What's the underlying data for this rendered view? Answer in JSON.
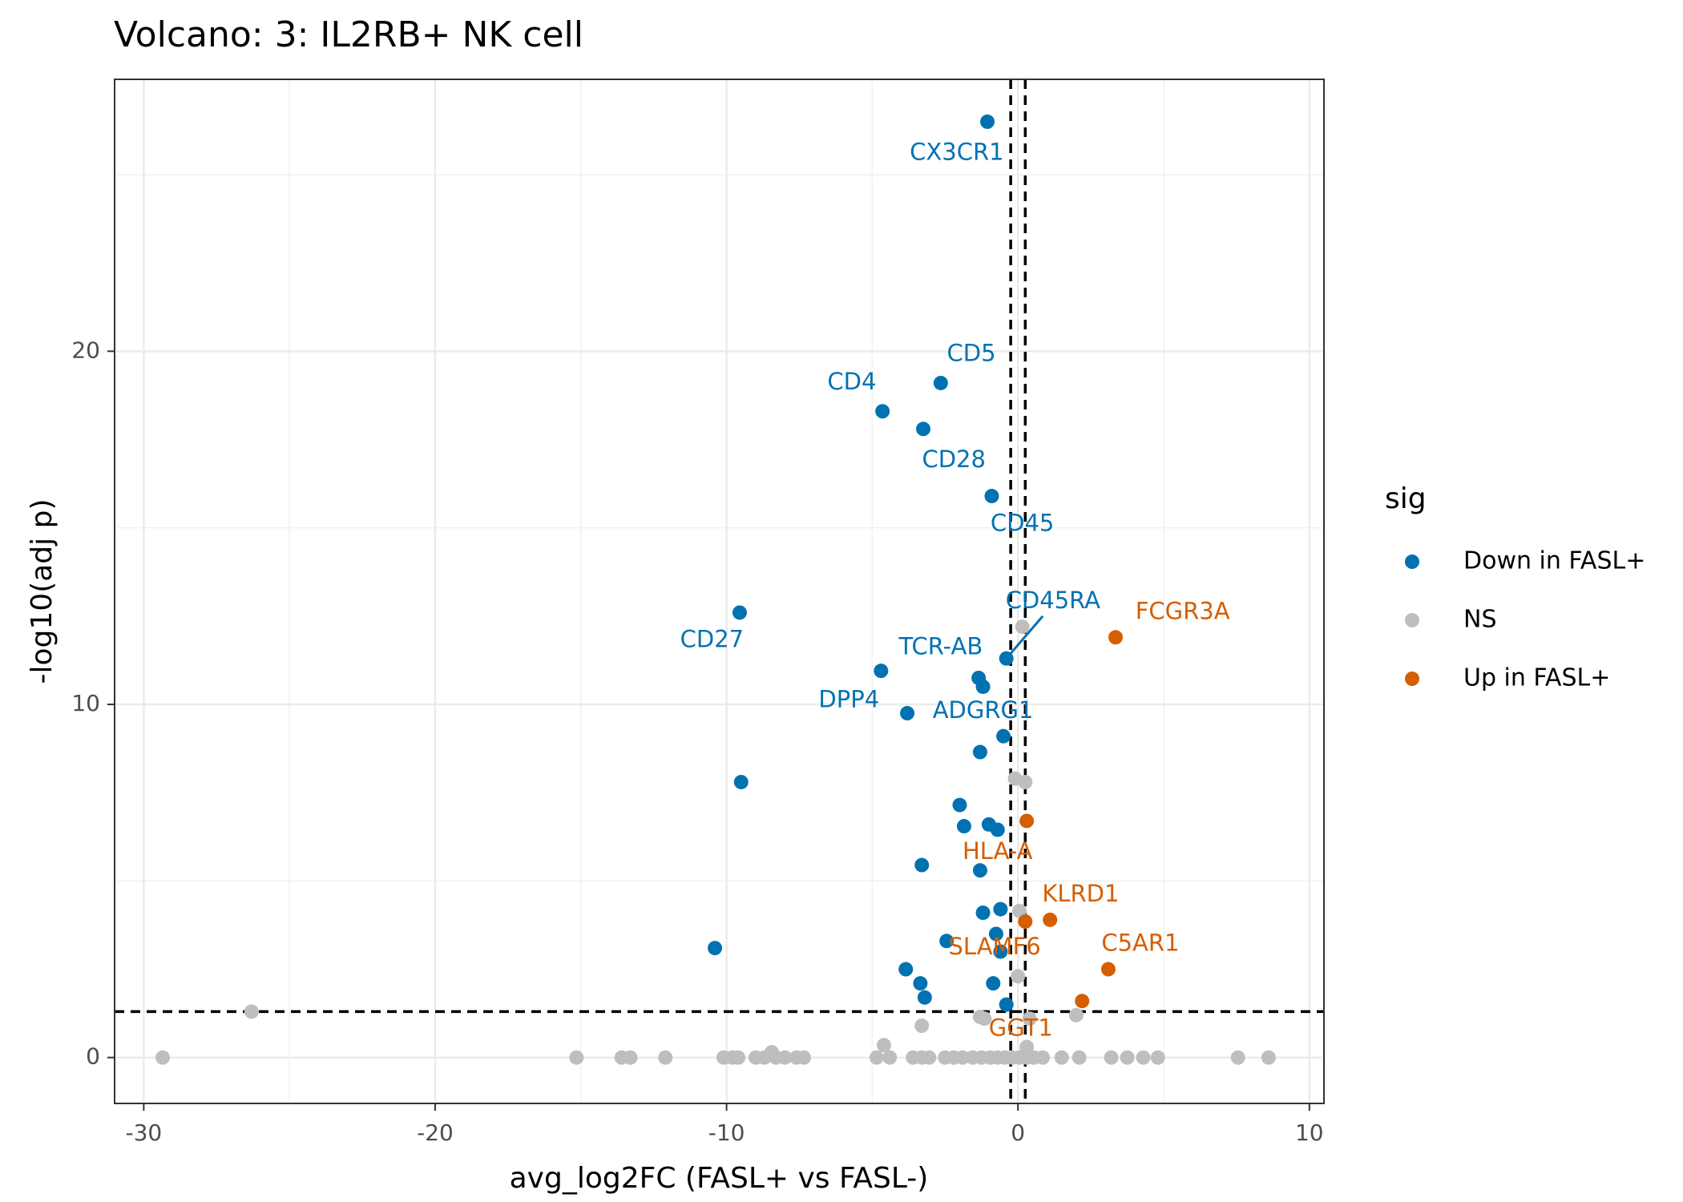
{
  "chart_data": {
    "type": "scatter",
    "title": "Volcano: 3: IL2RB+ NK cell",
    "xlabel": "avg_log2FC (FASL+ vs FASL-)",
    "ylabel": "-log10(adj p)",
    "xlim": [
      -31,
      10.5
    ],
    "ylim": [
      -1.3,
      27.7
    ],
    "x_ticks": [
      -30,
      -20,
      -10,
      0,
      10
    ],
    "x_tick_labels": [
      "-30",
      "-20",
      "-10",
      "0",
      "10"
    ],
    "y_ticks": [
      0,
      10,
      20
    ],
    "y_tick_labels": [
      "0",
      "10",
      "20"
    ],
    "grid": true,
    "thresholds": {
      "vlines": [
        -0.25,
        0.25
      ],
      "hline": 1.3
    },
    "legend": {
      "title": "sig",
      "placement": "right",
      "entries": [
        {
          "label": "Down in FASL+",
          "color": "#0072B2"
        },
        {
          "label": "NS",
          "color": "#BEBEBE"
        },
        {
          "label": "Up in FASL+",
          "color": "#D55E00"
        }
      ]
    },
    "series": [
      {
        "name": "Down in FASL+",
        "color": "#0072B2",
        "points": [
          {
            "x": -1.05,
            "y": 26.5,
            "label": "CX3CR1"
          },
          {
            "x": -2.65,
            "y": 19.1,
            "label": "CD5"
          },
          {
            "x": -4.65,
            "y": 18.3,
            "label": "CD4"
          },
          {
            "x": -3.25,
            "y": 17.8,
            "label": "CD28"
          },
          {
            "x": -0.9,
            "y": 15.9,
            "label": "CD45"
          },
          {
            "x": -9.55,
            "y": 12.6,
            "label": "CD27"
          },
          {
            "x": -0.4,
            "y": 11.3,
            "label": "CD45RA"
          },
          {
            "x": -4.7,
            "y": 10.95,
            "label": "TCR-AB"
          },
          {
            "x": -1.35,
            "y": 10.75
          },
          {
            "x": -1.2,
            "y": 10.5
          },
          {
            "x": -3.8,
            "y": 9.75,
            "label": "DPP4"
          },
          {
            "x": -0.5,
            "y": 9.1,
            "label": "ADGRG1"
          },
          {
            "x": -1.3,
            "y": 8.65
          },
          {
            "x": -9.5,
            "y": 7.8
          },
          {
            "x": -2.0,
            "y": 7.15
          },
          {
            "x": -1.0,
            "y": 6.6
          },
          {
            "x": -1.85,
            "y": 6.55
          },
          {
            "x": -0.7,
            "y": 6.45
          },
          {
            "x": -3.3,
            "y": 5.45
          },
          {
            "x": -1.3,
            "y": 5.3
          },
          {
            "x": -0.6,
            "y": 4.2
          },
          {
            "x": -1.2,
            "y": 4.1
          },
          {
            "x": -0.75,
            "y": 3.5
          },
          {
            "x": -2.45,
            "y": 3.3
          },
          {
            "x": -10.4,
            "y": 3.1
          },
          {
            "x": -0.6,
            "y": 3.0
          },
          {
            "x": -3.85,
            "y": 2.5
          },
          {
            "x": -3.35,
            "y": 2.1
          },
          {
            "x": -0.85,
            "y": 2.1
          },
          {
            "x": -3.2,
            "y": 1.7
          },
          {
            "x": -0.4,
            "y": 1.5
          }
        ]
      },
      {
        "name": "NS",
        "color": "#BEBEBE",
        "points": [
          {
            "x": 0.15,
            "y": 12.2
          },
          {
            "x": -0.1,
            "y": 7.9
          },
          {
            "x": 0.25,
            "y": 7.8
          },
          {
            "x": 0.05,
            "y": 4.15
          },
          {
            "x": 0.0,
            "y": 2.3
          },
          {
            "x": -26.3,
            "y": 1.3
          },
          {
            "x": -1.3,
            "y": 1.15
          },
          {
            "x": -1.15,
            "y": 1.1
          },
          {
            "x": 0.4,
            "y": 1.1
          },
          {
            "x": 2.0,
            "y": 1.2
          },
          {
            "x": -3.3,
            "y": 0.9
          },
          {
            "x": -4.6,
            "y": 0.35
          },
          {
            "x": 0.3,
            "y": 0.3
          },
          {
            "x": -8.45,
            "y": 0.15
          },
          {
            "x": -29.35,
            "y": 0
          },
          {
            "x": -15.15,
            "y": 0
          },
          {
            "x": -13.6,
            "y": 0
          },
          {
            "x": -13.3,
            "y": 0
          },
          {
            "x": -12.1,
            "y": 0
          },
          {
            "x": -10.1,
            "y": 0
          },
          {
            "x": -9.8,
            "y": 0
          },
          {
            "x": -9.6,
            "y": 0
          },
          {
            "x": -9.0,
            "y": 0
          },
          {
            "x": -8.7,
            "y": 0
          },
          {
            "x": -8.3,
            "y": 0
          },
          {
            "x": -8.0,
            "y": 0
          },
          {
            "x": -7.6,
            "y": 0
          },
          {
            "x": -7.35,
            "y": 0
          },
          {
            "x": -4.85,
            "y": 0
          },
          {
            "x": -4.4,
            "y": 0
          },
          {
            "x": -3.6,
            "y": 0
          },
          {
            "x": -3.3,
            "y": 0
          },
          {
            "x": -3.05,
            "y": 0
          },
          {
            "x": -2.5,
            "y": 0
          },
          {
            "x": -2.2,
            "y": 0
          },
          {
            "x": -1.9,
            "y": 0
          },
          {
            "x": -1.55,
            "y": 0
          },
          {
            "x": -1.25,
            "y": 0
          },
          {
            "x": -0.95,
            "y": 0
          },
          {
            "x": -0.7,
            "y": 0
          },
          {
            "x": -0.45,
            "y": 0
          },
          {
            "x": -0.2,
            "y": 0
          },
          {
            "x": 0.05,
            "y": 0
          },
          {
            "x": 0.3,
            "y": 0
          },
          {
            "x": 0.55,
            "y": 0
          },
          {
            "x": 0.85,
            "y": 0
          },
          {
            "x": 1.5,
            "y": 0
          },
          {
            "x": 2.1,
            "y": 0
          },
          {
            "x": 3.2,
            "y": 0
          },
          {
            "x": 3.75,
            "y": 0
          },
          {
            "x": 4.3,
            "y": 0
          },
          {
            "x": 4.8,
            "y": 0
          },
          {
            "x": 7.55,
            "y": 0
          },
          {
            "x": 8.6,
            "y": 0
          }
        ]
      },
      {
        "name": "Up in FASL+",
        "color": "#D55E00",
        "points": [
          {
            "x": 3.35,
            "y": 11.9,
            "label": "FCGR3A"
          },
          {
            "x": 0.3,
            "y": 6.7,
            "label": "HLA-A"
          },
          {
            "x": 1.1,
            "y": 3.9,
            "label": "KLRD1"
          },
          {
            "x": 0.25,
            "y": 3.85,
            "label": "SLAMF6"
          },
          {
            "x": 3.1,
            "y": 2.5,
            "label": "C5AR1"
          },
          {
            "x": 2.2,
            "y": 1.6,
            "label": "GGT1"
          }
        ]
      }
    ],
    "labels": [
      {
        "text": "CX3CR1",
        "x": -2.1,
        "y": 25.6,
        "series": "Down in FASL+"
      },
      {
        "text": "CD5",
        "x": -1.6,
        "y": 19.9,
        "series": "Down in FASL+"
      },
      {
        "text": "CD4",
        "x": -5.7,
        "y": 19.1,
        "series": "Down in FASL+"
      },
      {
        "text": "CD28",
        "x": -2.2,
        "y": 16.9,
        "series": "Down in FASL+"
      },
      {
        "text": "CD45",
        "x": 0.15,
        "y": 15.1,
        "series": "Down in FASL+"
      },
      {
        "text": "CD45RA",
        "x": 1.2,
        "y": 12.9,
        "series": "Down in FASL+"
      },
      {
        "text": "CD27",
        "x": -10.5,
        "y": 11.8,
        "series": "Down in FASL+"
      },
      {
        "text": "TCR-AB",
        "x": -2.65,
        "y": 11.6,
        "series": "Down in FASL+"
      },
      {
        "text": "DPP4",
        "x": -5.8,
        "y": 10.1,
        "series": "Down in FASL+"
      },
      {
        "text": "ADGRG1",
        "x": -1.2,
        "y": 9.8,
        "series": "Down in FASL+"
      },
      {
        "text": "FCGR3A",
        "x": 5.65,
        "y": 12.6,
        "series": "Up in FASL+"
      },
      {
        "text": "HLA-A",
        "x": -0.7,
        "y": 5.8,
        "series": "Up in FASL+"
      },
      {
        "text": "KLRD1",
        "x": 2.15,
        "y": 4.6,
        "series": "Up in FASL+"
      },
      {
        "text": "SLAMF6",
        "x": -0.8,
        "y": 3.1,
        "series": "Up in FASL+"
      },
      {
        "text": "C5AR1",
        "x": 4.2,
        "y": 3.2,
        "series": "Up in FASL+"
      },
      {
        "text": "GGT1",
        "x": 0.1,
        "y": 0.8,
        "series": "Up in FASL+"
      }
    ],
    "label_segments": [
      {
        "from": [
          -0.4,
          11.3
        ],
        "to": [
          0.85,
          12.5
        ],
        "series": "Down in FASL+"
      }
    ]
  }
}
